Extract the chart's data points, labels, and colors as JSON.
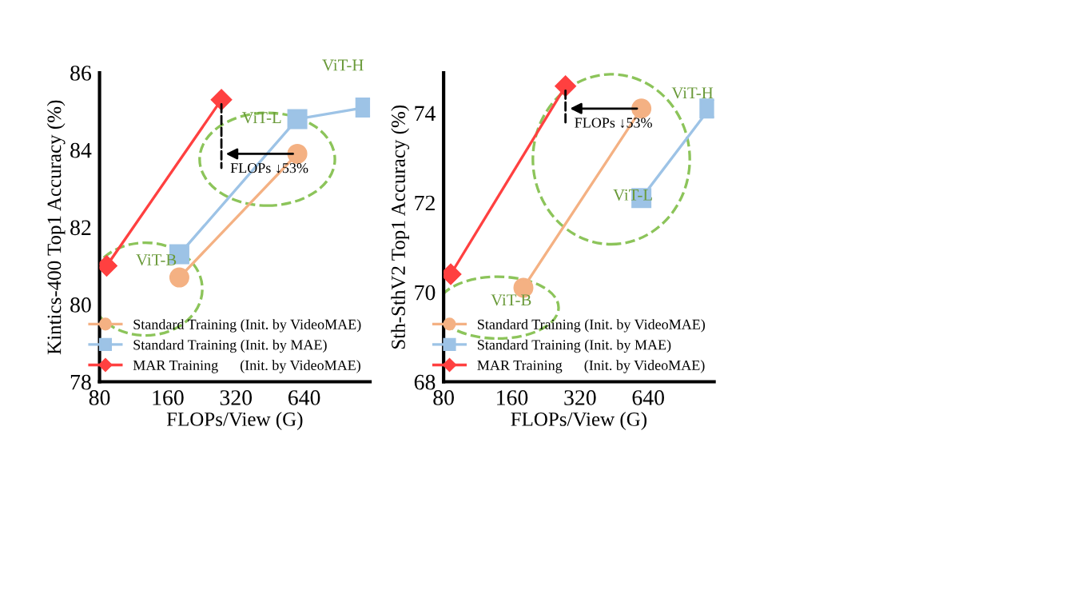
{
  "chart_data": [
    {
      "type": "line",
      "ylabel": "Kintics-400 Top1 Accuracy (%)",
      "xlabel": "FLOPs/View (G)",
      "log": "x",
      "xlim": [
        80,
        1250
      ],
      "xticks": [
        80,
        160,
        320,
        640
      ],
      "ylim": [
        78,
        86
      ],
      "yticks": [
        78,
        80,
        82,
        84,
        86
      ],
      "grid": false,
      "legend": "bottom right",
      "series": [
        {
          "name": "Standard Training (Init. by VideoMAE)",
          "color": "#f4b183",
          "marker": "circle",
          "x": [
            180,
            597
          ],
          "values": [
            80.7,
            83.9
          ]
        },
        {
          "name": "Standard Training (Init. by MAE)",
          "color": "#9dc3e6",
          "marker": "square",
          "x": [
            180,
            597,
            1192
          ],
          "values": [
            81.3,
            84.8,
            85.1
          ]
        },
        {
          "name": "MAR Training      (Init. by VideoMAE)",
          "color": "#ff4040",
          "marker": "diamond",
          "x": [
            86,
            276
          ],
          "values": [
            81.0,
            85.3
          ]
        }
      ],
      "annotations": [
        "ViT-B",
        "ViT-L",
        "ViT-H",
        {
          "text": "FLOPs ↓53%",
          "x": 276,
          "y": 85.3
        }
      ]
    },
    {
      "type": "line",
      "ylabel": "Sth-SthV2 Top1 Accuracy (%)",
      "xlabel": "FLOPs/View (G)",
      "log": "x",
      "xlim": [
        80,
        1250
      ],
      "xticks": [
        80,
        160,
        320,
        640
      ],
      "ylim": [
        68,
        74.9
      ],
      "yticks": [
        68,
        70,
        72,
        74
      ],
      "grid": false,
      "legend": "bottom right",
      "series": [
        {
          "name": "Standard Training (Init. by VideoMAE)",
          "color": "#f4b183",
          "marker": "circle",
          "x": [
            180,
            597
          ],
          "values": [
            70.1,
            74.1
          ]
        },
        {
          "name": "Standard Training (Init. by MAE)",
          "color": "#9dc3e6",
          "marker": "square",
          "x": [
            597,
            1192
          ],
          "values": [
            72.1,
            74.1
          ]
        },
        {
          "name": "MAR Training      (Init. by VideoMAE)",
          "color": "#ff4040",
          "marker": "diamond",
          "x": [
            86,
            276
          ],
          "values": [
            70.4,
            74.6
          ]
        }
      ],
      "annotations": [
        "ViT-B",
        "ViT-L",
        "ViT-H",
        {
          "text": "FLOPs ↓53%",
          "x": 276,
          "y": 74.6
        }
      ]
    }
  ]
}
